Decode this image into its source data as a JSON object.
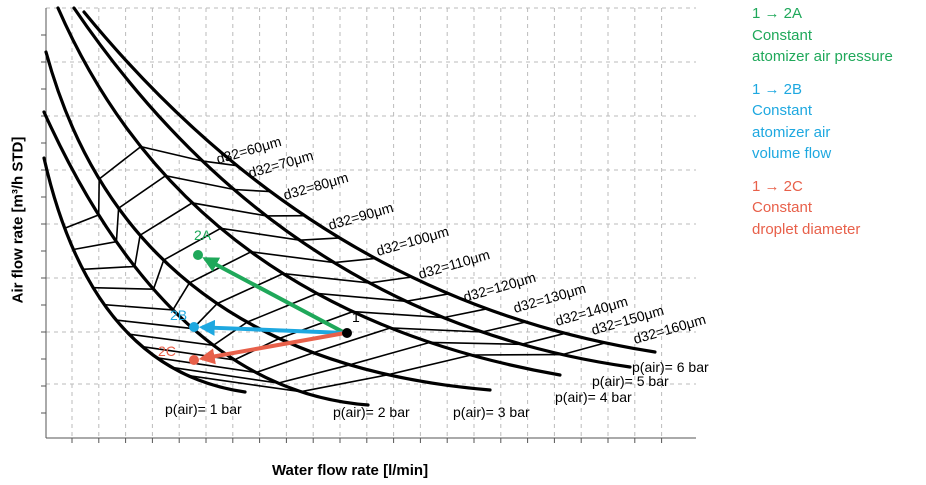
{
  "axes": {
    "x_label": "Water flow rate [l/min]",
    "y_label": "Air flow rate [m³/h STD]"
  },
  "pressure_curves": [
    {
      "label": "p(air)= 1 bar",
      "color": "#000000"
    },
    {
      "label": "p(air)= 2 bar",
      "color": "#000000"
    },
    {
      "label": "p(air)= 3 bar",
      "color": "#000000"
    },
    {
      "label": "p(air)= 4 bar",
      "color": "#000000"
    },
    {
      "label": "p(air)= 5 bar",
      "color": "#000000"
    },
    {
      "label": "p(air)= 6 bar",
      "color": "#000000"
    }
  ],
  "droplet_lines": [
    {
      "label": "d32=60μm"
    },
    {
      "label": "d32=70μm"
    },
    {
      "label": "d32=80μm"
    },
    {
      "label": "d32=90μm"
    },
    {
      "label": "d32=100μm"
    },
    {
      "label": "d32=110μm"
    },
    {
      "label": "d32=120μm"
    },
    {
      "label": "d32=130μm"
    },
    {
      "label": "d32=140μm"
    },
    {
      "label": "d32=150μm"
    },
    {
      "label": "d32=160μm"
    }
  ],
  "points": {
    "start": {
      "label": "1",
      "color": "#000000"
    },
    "targets": [
      {
        "label": "2A",
        "color": "#1fa85a"
      },
      {
        "label": "2B",
        "color": "#1ea8e0"
      },
      {
        "label": "2C",
        "color": "#e8604a"
      }
    ]
  },
  "legend": [
    {
      "color": "#1fa85a",
      "lines": [
        "1 → 2A",
        "Constant",
        "atomizer air pressure"
      ]
    },
    {
      "color": "#1ea8e0",
      "lines": [
        "1 → 2B",
        "Constant",
        "atomizer air",
        "volume flow"
      ]
    },
    {
      "color": "#e8604a",
      "lines": [
        "1 → 2C",
        "Constant",
        "droplet diameter"
      ]
    }
  ]
}
